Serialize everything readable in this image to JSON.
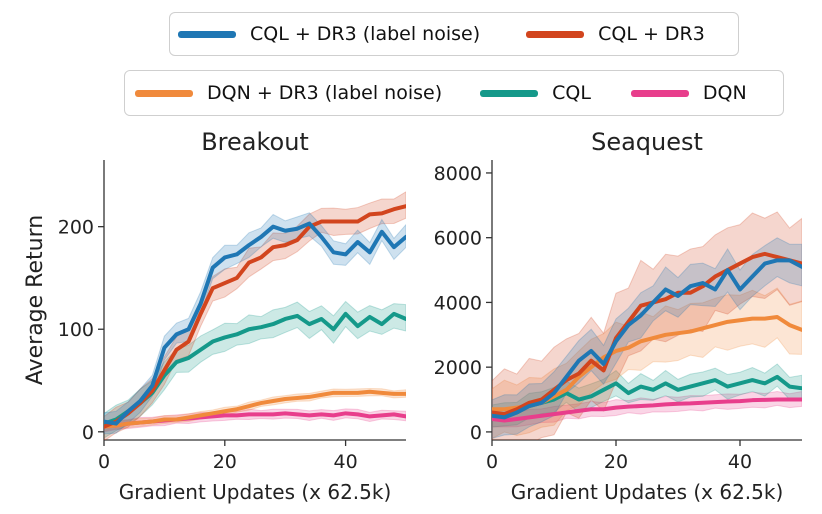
{
  "legend": {
    "row1": [
      {
        "label": "CQL + DR3 (label noise)",
        "color": "#1f77b4"
      },
      {
        "label": "CQL + DR3",
        "color": "#d2451e"
      }
    ],
    "row2": [
      {
        "label": "DQN + DR3 (label noise)",
        "color": "#f08a3c"
      },
      {
        "label": "CQL",
        "color": "#15998a"
      },
      {
        "label": "DQN",
        "color": "#e83e8c"
      }
    ]
  },
  "chart_data": [
    {
      "type": "line",
      "title": "Breakout",
      "xlabel": "Gradient Updates (x 62.5k)",
      "ylabel": "Average Return",
      "xlim": [
        0,
        50
      ],
      "ylim": [
        -8,
        265
      ],
      "xticks": [
        0,
        20,
        40
      ],
      "yticks": [
        0,
        100,
        200
      ],
      "x": [
        0,
        2,
        4,
        6,
        8,
        10,
        12,
        14,
        16,
        18,
        20,
        22,
        24,
        26,
        28,
        30,
        32,
        34,
        36,
        38,
        40,
        42,
        44,
        46,
        48,
        50
      ],
      "series": [
        {
          "name": "CQL + DR3 (label noise)",
          "color": "#1f77b4",
          "values": [
            10,
            8,
            20,
            30,
            45,
            82,
            95,
            100,
            125,
            160,
            170,
            173,
            182,
            190,
            200,
            196,
            198,
            203,
            190,
            175,
            173,
            185,
            175,
            195,
            180,
            190
          ],
          "band": 12
        },
        {
          "name": "CQL + DR3",
          "color": "#d2451e",
          "values": [
            5,
            10,
            18,
            28,
            40,
            60,
            80,
            88,
            115,
            140,
            145,
            150,
            165,
            170,
            180,
            182,
            187,
            200,
            205,
            205,
            205,
            205,
            212,
            213,
            217,
            220
          ],
          "band": 14
        },
        {
          "name": "DQN + DR3 (label noise)",
          "color": "#f08a3c",
          "values": [
            5,
            6,
            8,
            9,
            10,
            12,
            12,
            14,
            16,
            18,
            20,
            22,
            25,
            28,
            30,
            32,
            33,
            34,
            36,
            38,
            38,
            38,
            39,
            38,
            37,
            37
          ],
          "band": 4
        },
        {
          "name": "CQL",
          "color": "#15998a",
          "values": [
            8,
            12,
            20,
            28,
            38,
            55,
            68,
            72,
            80,
            88,
            92,
            95,
            100,
            102,
            105,
            110,
            113,
            105,
            110,
            100,
            115,
            103,
            112,
            105,
            115,
            110
          ],
          "band": 14
        },
        {
          "name": "DQN",
          "color": "#e83e8c",
          "values": [
            5,
            6,
            8,
            9,
            10,
            11,
            12,
            13,
            14,
            15,
            16,
            16,
            17,
            17,
            17,
            18,
            17,
            16,
            17,
            16,
            18,
            17,
            15,
            16,
            17,
            15
          ],
          "band": 5
        }
      ]
    },
    {
      "type": "line",
      "title": "Seaquest",
      "xlabel": "Gradient Updates (x 62.5k)",
      "ylabel": "",
      "xlim": [
        0,
        50
      ],
      "ylim": [
        -250,
        8400
      ],
      "xticks": [
        0,
        20,
        40
      ],
      "yticks": [
        0,
        2000,
        4000,
        6000,
        8000
      ],
      "x": [
        0,
        2,
        4,
        6,
        8,
        10,
        12,
        14,
        16,
        18,
        20,
        22,
        24,
        26,
        28,
        30,
        32,
        34,
        36,
        38,
        40,
        42,
        44,
        46,
        48,
        50
      ],
      "series": [
        {
          "name": "CQL + DR3 (label noise)",
          "color": "#1f77b4",
          "values": [
            500,
            450,
            600,
            800,
            900,
            1200,
            1700,
            2200,
            2500,
            2100,
            2800,
            3300,
            3600,
            4000,
            4400,
            4200,
            4500,
            4600,
            4400,
            5000,
            4400,
            4800,
            5200,
            5300,
            5300,
            5100
          ],
          "band": 700
        },
        {
          "name": "CQL + DR3",
          "color": "#d2451e",
          "values": [
            600,
            550,
            700,
            900,
            1000,
            1300,
            1600,
            1800,
            2200,
            1900,
            2900,
            3400,
            3900,
            4000,
            4100,
            4300,
            4300,
            4500,
            4800,
            5000,
            5200,
            5400,
            5500,
            5400,
            5300,
            5200
          ],
          "band": 1400
        },
        {
          "name": "DQN + DR3 (label noise)",
          "color": "#f08a3c",
          "values": [
            700,
            700,
            750,
            800,
            900,
            1100,
            1300,
            1700,
            2000,
            2300,
            2500,
            2600,
            2800,
            2900,
            3000,
            3050,
            3100,
            3200,
            3300,
            3400,
            3450,
            3500,
            3500,
            3550,
            3300,
            3150
          ],
          "band": 900
        },
        {
          "name": "CQL",
          "color": "#15998a",
          "values": [
            550,
            500,
            600,
            800,
            900,
            1000,
            1200,
            1000,
            1100,
            1300,
            1500,
            1200,
            1400,
            1300,
            1500,
            1300,
            1400,
            1500,
            1600,
            1400,
            1500,
            1600,
            1500,
            1700,
            1400,
            1350
          ],
          "band": 400
        },
        {
          "name": "DQN",
          "color": "#e83e8c",
          "values": [
            400,
            350,
            400,
            450,
            500,
            550,
            600,
            650,
            700,
            700,
            750,
            780,
            800,
            820,
            850,
            870,
            880,
            900,
            920,
            940,
            950,
            980,
            990,
            1000,
            1000,
            1000
          ],
          "band": 250
        }
      ]
    }
  ]
}
